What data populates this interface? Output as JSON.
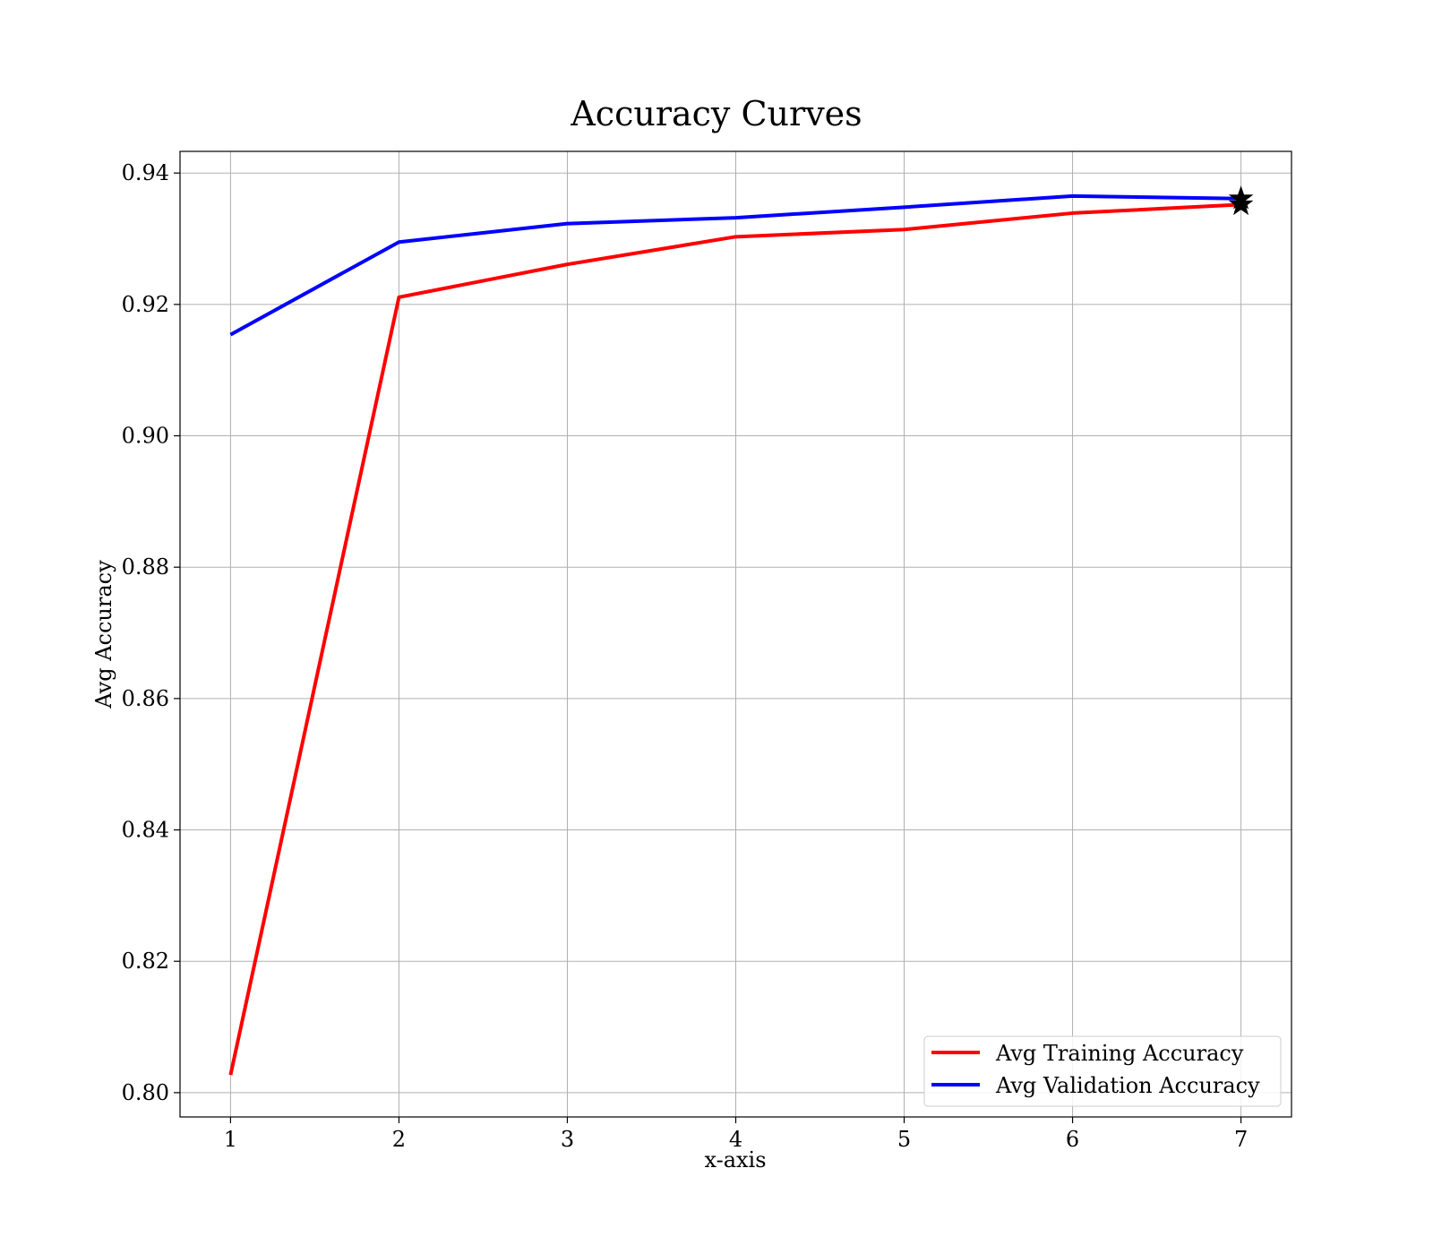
{
  "chart_data": {
    "type": "line",
    "title": "Accuracy Curves",
    "xlabel": "x-axis",
    "ylabel": "Avg Accuracy",
    "x": [
      1,
      2,
      3,
      4,
      5,
      6,
      7
    ],
    "xlim": [
      0.7,
      7.3
    ],
    "ylim": [
      0.7963,
      0.9433
    ],
    "xticks": [
      1,
      2,
      3,
      4,
      5,
      6,
      7
    ],
    "yticks": [
      0.8,
      0.82,
      0.84,
      0.86,
      0.88,
      0.9,
      0.92,
      0.94
    ],
    "ytick_labels": [
      "0.80",
      "0.82",
      "0.84",
      "0.86",
      "0.88",
      "0.90",
      "0.92",
      "0.94"
    ],
    "grid": true,
    "legend": "lower-right",
    "series": [
      {
        "name": "Avg Training Accuracy",
        "color": "#ff0000",
        "values": [
          0.8027,
          0.9211,
          0.9261,
          0.9303,
          0.9314,
          0.9339,
          0.9352
        ],
        "best_marker": {
          "x": 7,
          "y": 0.9352,
          "symbol": "star",
          "color": "#000000"
        }
      },
      {
        "name": "Avg Validation Accuracy",
        "color": "#0000ff",
        "values": [
          0.9154,
          0.9295,
          0.9323,
          0.9332,
          0.9348,
          0.9365,
          0.9361
        ],
        "best_marker": {
          "x": 7,
          "y": 0.9361,
          "symbol": "star",
          "color": "#000000"
        }
      }
    ]
  }
}
